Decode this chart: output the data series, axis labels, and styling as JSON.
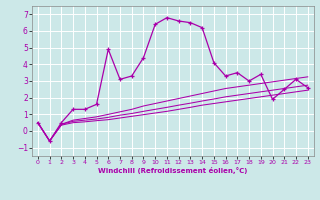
{
  "xlabel": "Windchill (Refroidissement éolien,°C)",
  "xlim": [
    -0.5,
    23.5
  ],
  "ylim": [
    -1.5,
    7.5
  ],
  "yticks": [
    -1,
    0,
    1,
    2,
    3,
    4,
    5,
    6,
    7
  ],
  "xticks": [
    0,
    1,
    2,
    3,
    4,
    5,
    6,
    7,
    8,
    9,
    10,
    11,
    12,
    13,
    14,
    15,
    16,
    17,
    18,
    19,
    20,
    21,
    22,
    23
  ],
  "bg_color": "#cce8e8",
  "grid_color": "#ffffff",
  "line_color": "#aa00aa",
  "series0_x": [
    0,
    1,
    2,
    3,
    4,
    5,
    6,
    7,
    8,
    9,
    10,
    11,
    12,
    13,
    14,
    15,
    16,
    17,
    18,
    19,
    20,
    21,
    22,
    23
  ],
  "series0_y": [
    0.5,
    -0.6,
    0.5,
    1.3,
    1.3,
    1.6,
    4.9,
    3.1,
    3.3,
    4.4,
    6.4,
    6.8,
    6.6,
    6.5,
    6.2,
    4.1,
    3.3,
    3.5,
    3.0,
    3.4,
    1.9,
    2.5,
    3.1,
    2.6
  ],
  "series1_x": [
    0,
    1,
    2,
    3,
    4,
    5,
    6,
    7,
    8,
    9,
    10,
    11,
    12,
    13,
    14,
    15,
    16,
    17,
    18,
    19,
    20,
    21,
    22,
    23
  ],
  "series1_y": [
    0.5,
    -0.6,
    0.4,
    0.65,
    0.75,
    0.85,
    1.0,
    1.15,
    1.3,
    1.5,
    1.65,
    1.8,
    1.95,
    2.1,
    2.25,
    2.4,
    2.55,
    2.65,
    2.75,
    2.85,
    2.95,
    3.05,
    3.15,
    3.25
  ],
  "series2_x": [
    0,
    1,
    2,
    3,
    4,
    5,
    6,
    7,
    8,
    9,
    10,
    11,
    12,
    13,
    14,
    15,
    16,
    17,
    18,
    19,
    20,
    21,
    22,
    23
  ],
  "series2_y": [
    0.5,
    -0.6,
    0.4,
    0.58,
    0.65,
    0.72,
    0.82,
    0.95,
    1.05,
    1.18,
    1.3,
    1.42,
    1.55,
    1.67,
    1.8,
    1.92,
    2.05,
    2.15,
    2.25,
    2.35,
    2.45,
    2.55,
    2.65,
    2.75
  ],
  "series3_x": [
    0,
    1,
    2,
    3,
    4,
    5,
    6,
    7,
    8,
    9,
    10,
    11,
    12,
    13,
    14,
    15,
    16,
    17,
    18,
    19,
    20,
    21,
    22,
    23
  ],
  "series3_y": [
    0.5,
    -0.6,
    0.35,
    0.5,
    0.55,
    0.62,
    0.68,
    0.78,
    0.88,
    0.98,
    1.08,
    1.18,
    1.3,
    1.42,
    1.55,
    1.65,
    1.75,
    1.85,
    1.95,
    2.05,
    2.15,
    2.25,
    2.35,
    2.45
  ]
}
